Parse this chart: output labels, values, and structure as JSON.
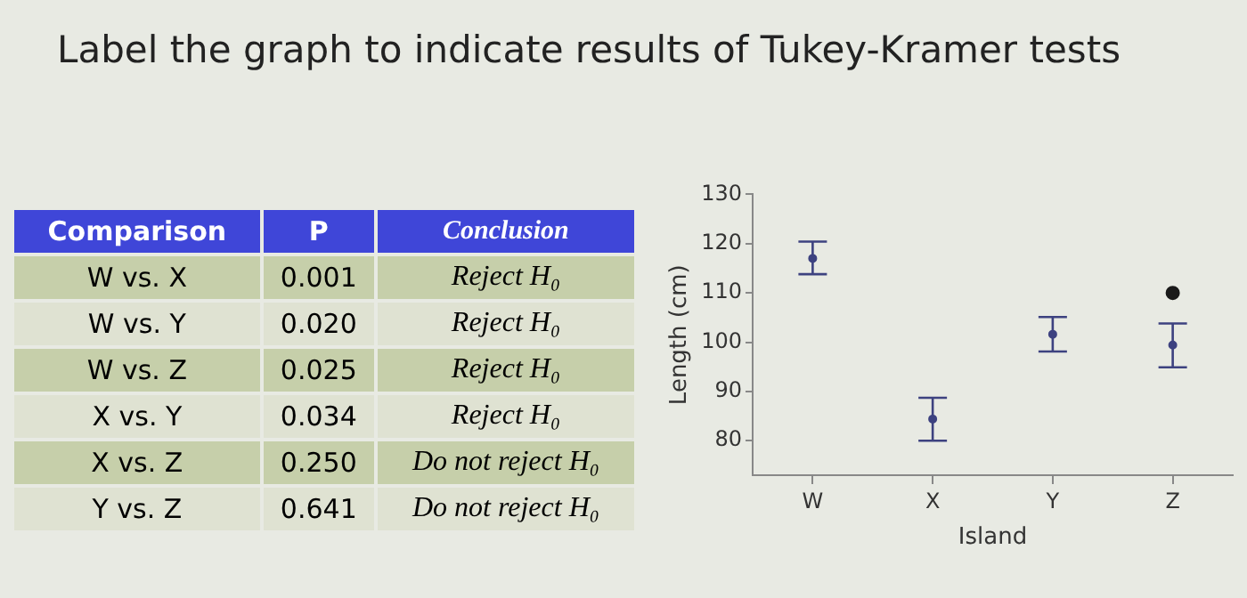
{
  "chart_data": [
    {
      "type": "other",
      "title": "Label the graph to indicate results of Tukey-Kramer tests",
      "annotations": [
        "Comparison",
        "P",
        "Conclusion",
        "W vs. X",
        "0.001",
        "Reject H₀",
        "W vs. Y",
        "0.020",
        "Reject H₀",
        "W vs. Z",
        "0.025",
        "Reject H₀",
        "X vs. Y",
        "0.034",
        "Reject H₀",
        "X vs. Z",
        "0.250",
        "Do not reject H₀",
        "Y vs. Z",
        "0.641",
        "Do not reject H₀"
      ]
    },
    {
      "type": "scatter",
      "xlabel": "Island",
      "ylabel": "Length (cm)",
      "categories": [
        "W",
        "X",
        "Y",
        "Z"
      ],
      "series": [
        {
          "color": "#3d4280",
          "values": [
            117,
            84.4,
            101.6,
            99.4
          ],
          "errors": [
            [
              113.8,
              120.4
            ],
            [
              80,
              88.7
            ],
            [
              98.1,
              105.1
            ],
            [
              94.9,
              103.8
            ]
          ]
        },
        {
          "color": "#1a1a1a",
          "values": [
            null,
            null,
            null,
            110
          ]
        }
      ],
      "ylim": [
        73,
        130
      ],
      "yticks": [
        80,
        90,
        100,
        110,
        120,
        130
      ],
      "grid": false,
      "legend": false,
      "marker": "circle"
    }
  ]
}
